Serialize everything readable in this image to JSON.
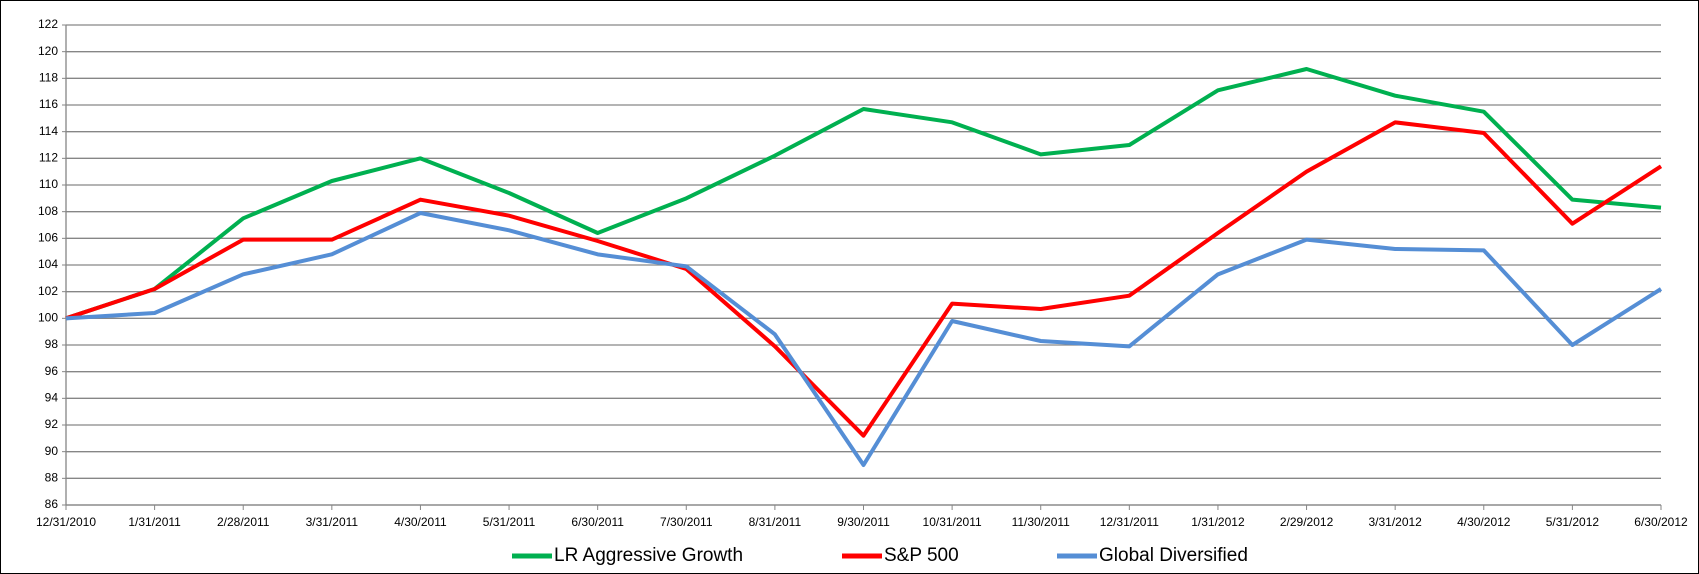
{
  "chart_data": {
    "type": "line",
    "categories": [
      "12/31/2010",
      "1/31/2011",
      "2/28/2011",
      "3/31/2011",
      "4/30/2011",
      "5/31/2011",
      "6/30/2011",
      "7/30/2011",
      "8/31/2011",
      "9/30/2011",
      "10/31/2011",
      "11/30/2011",
      "12/31/2011",
      "1/31/2012",
      "2/29/2012",
      "3/31/2012",
      "4/30/2012",
      "5/31/2012",
      "6/30/2012"
    ],
    "series": [
      {
        "name": "LR Aggressive Growth",
        "color": "#00b050",
        "values": [
          100,
          102.2,
          107.5,
          110.3,
          112,
          109.4,
          106.4,
          109,
          112.2,
          115.7,
          114.7,
          112.3,
          113,
          117.1,
          118.7,
          116.7,
          115.5,
          108.9,
          108.3
        ]
      },
      {
        "name": "S&P 500",
        "color": "#ff0000",
        "values": [
          100,
          102.2,
          105.9,
          105.9,
          108.9,
          107.7,
          105.8,
          103.7,
          97.9,
          91.2,
          101.1,
          100.7,
          101.7,
          106.4,
          111,
          114.7,
          113.9,
          107.1,
          111.4
        ]
      },
      {
        "name": "Global Diversified",
        "color": "#558ed5",
        "values": [
          100,
          100.4,
          103.3,
          104.8,
          107.9,
          106.6,
          104.8,
          103.9,
          98.8,
          89,
          99.8,
          98.3,
          97.9,
          103.3,
          105.9,
          105.2,
          105.1,
          98,
          102.2
        ]
      }
    ],
    "ylim": [
      86,
      122
    ],
    "yticks": [
      86,
      88,
      90,
      92,
      94,
      96,
      98,
      100,
      102,
      104,
      106,
      108,
      110,
      112,
      114,
      116,
      118,
      120,
      122
    ],
    "grid": true,
    "legend": "bottom"
  }
}
